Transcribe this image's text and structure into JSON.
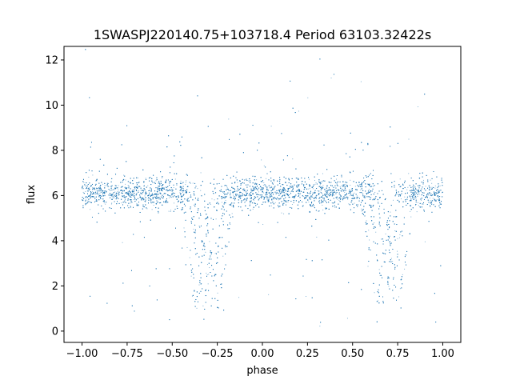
{
  "chart_data": {
    "type": "scatter",
    "title": "1SWASPJ220140.75+103718.4 Period 63103.32422s",
    "xlabel": "phase",
    "ylabel": "flux",
    "xlim": [
      -1.1,
      1.1
    ],
    "ylim": [
      -0.5,
      12.6
    ],
    "xticks": [
      -1.0,
      -0.75,
      -0.5,
      -0.25,
      0.0,
      0.25,
      0.5,
      0.75,
      1.0
    ],
    "xtick_labels": [
      "−1.00",
      "−0.75",
      "−0.50",
      "−0.25",
      "0.00",
      "0.25",
      "0.50",
      "0.75",
      "1.00"
    ],
    "yticks": [
      0,
      2,
      4,
      6,
      8,
      10,
      12
    ],
    "ytick_labels": [
      "0",
      "2",
      "4",
      "6",
      "8",
      "10",
      "12"
    ],
    "grid": false,
    "marker_color": "#1f77b4",
    "series": [
      {
        "description_points": [
          {
            "phase": -1.0,
            "flux": 6.1
          },
          {
            "phase": -0.75,
            "flux": 6.1
          },
          {
            "phase": -0.5,
            "flux": 6.1
          },
          {
            "phase": -0.4,
            "flux": 4.2
          },
          {
            "phase": -0.35,
            "flux": 1.3
          },
          {
            "phase": -0.3,
            "flux": 1.5
          },
          {
            "phase": -0.25,
            "flux": 1.1
          },
          {
            "phase": -0.2,
            "flux": 4.5
          },
          {
            "phase": -0.15,
            "flux": 6.0
          },
          {
            "phase": 0.0,
            "flux": 6.1
          },
          {
            "phase": 0.25,
            "flux": 6.0
          },
          {
            "phase": 0.5,
            "flux": 6.1
          },
          {
            "phase": 0.6,
            "flux": 4.2
          },
          {
            "phase": 0.65,
            "flux": 1.3
          },
          {
            "phase": 0.7,
            "flux": 1.5
          },
          {
            "phase": 0.75,
            "flux": 1.1
          },
          {
            "phase": 0.8,
            "flux": 4.5
          },
          {
            "phase": 0.85,
            "flux": 6.0
          },
          {
            "phase": 1.0,
            "flux": 6.1
          }
        ]
      }
    ]
  }
}
